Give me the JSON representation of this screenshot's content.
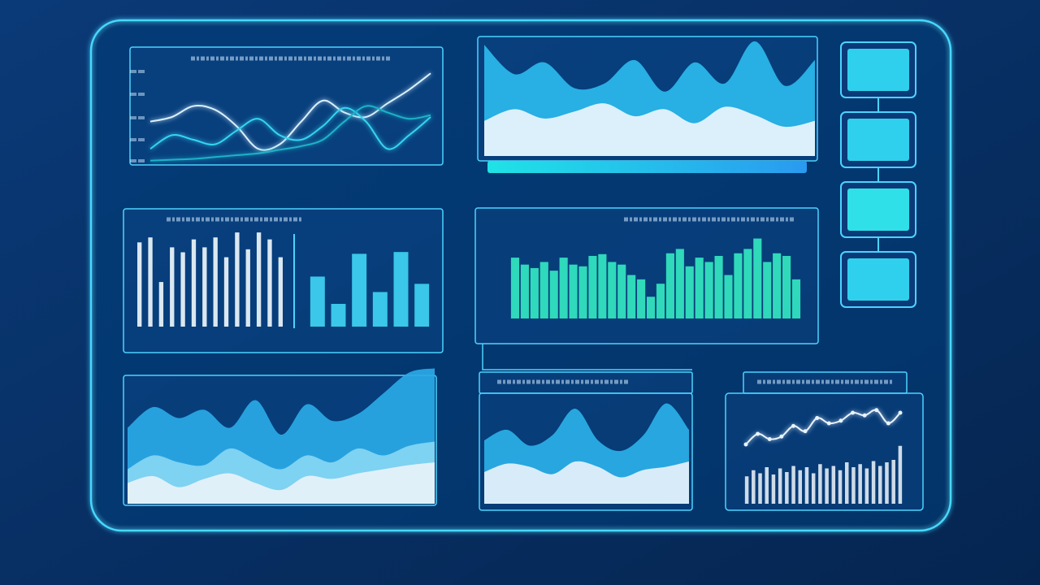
{
  "chart_data": [
    {
      "type": "line",
      "ylim": [
        0,
        100
      ],
      "series": [
        {
          "color": "#d8f1ff",
          "values": [
            45,
            50,
            62,
            58,
            40,
            15,
            20,
            45,
            68,
            55,
            50,
            65,
            80,
            98
          ]
        },
        {
          "color": "#35d4f0",
          "values": [
            15,
            30,
            25,
            20,
            35,
            48,
            30,
            25,
            40,
            60,
            45,
            15,
            30,
            50
          ]
        },
        {
          "color": "#1fb3c9",
          "values": [
            2,
            3,
            4,
            6,
            8,
            10,
            14,
            18,
            25,
            45,
            62,
            55,
            48,
            52
          ]
        }
      ]
    },
    {
      "type": "area",
      "ylim": [
        0,
        100
      ],
      "series": [
        {
          "color": "#2bb8ec",
          "values": [
            95,
            70,
            80,
            58,
            62,
            82,
            55,
            80,
            62,
            98,
            60,
            82
          ]
        },
        {
          "color": "#eaf5fc",
          "values": [
            30,
            40,
            32,
            38,
            45,
            34,
            40,
            28,
            42,
            35,
            25,
            30
          ]
        }
      ]
    },
    {
      "type": "bar",
      "ylim": [
        0,
        100
      ],
      "color": "#eef6fb",
      "values": [
        85,
        90,
        45,
        80,
        75,
        88,
        80,
        90,
        70,
        95,
        78,
        95,
        88,
        70
      ]
    },
    {
      "type": "bar",
      "ylim": [
        0,
        100
      ],
      "color": "#3fd3f2",
      "values": [
        55,
        25,
        80,
        38,
        82,
        47
      ]
    },
    {
      "type": "bar",
      "ylim": [
        0,
        100
      ],
      "color": "#33e6c0",
      "values": [
        70,
        62,
        58,
        65,
        55,
        70,
        62,
        60,
        72,
        74,
        65,
        62,
        50,
        45,
        25,
        40,
        75,
        80,
        60,
        70,
        65,
        72,
        50,
        75,
        80,
        92,
        65,
        75,
        72,
        45
      ]
    },
    {
      "type": "area",
      "ylim": [
        0,
        100
      ],
      "series": [
        {
          "color": "#2aa9e6",
          "values": [
            55,
            70,
            62,
            68,
            55,
            75,
            50,
            72,
            60,
            65,
            80,
            95,
            98
          ]
        },
        {
          "color": "#86d6f3",
          "values": [
            25,
            35,
            30,
            28,
            40,
            32,
            25,
            35,
            30,
            40,
            35,
            42,
            45
          ]
        },
        {
          "color": "#e8f2fa",
          "values": [
            15,
            20,
            12,
            18,
            22,
            15,
            10,
            20,
            18,
            22,
            25,
            28,
            30
          ]
        }
      ]
    },
    {
      "type": "area",
      "ylim": [
        0,
        100
      ],
      "series": [
        {
          "color": "#2bb0e8",
          "values": [
            60,
            70,
            55,
            65,
            90,
            60,
            50,
            65,
            95,
            70
          ]
        },
        {
          "color": "#e6f2fa",
          "values": [
            30,
            38,
            35,
            28,
            40,
            35,
            25,
            32,
            35,
            40
          ]
        }
      ]
    },
    {
      "type": "line",
      "ylim": [
        0,
        100
      ],
      "markers": true,
      "series": [
        {
          "color": "#e8f4ff",
          "values": [
            20,
            40,
            30,
            35,
            55,
            45,
            70,
            60,
            65,
            80,
            75,
            85,
            60,
            80
          ]
        }
      ]
    },
    {
      "type": "bar",
      "ylim": [
        0,
        100
      ],
      "color": "#dfe9f2",
      "values": [
        45,
        55,
        50,
        60,
        48,
        58,
        52,
        62,
        55,
        60,
        50,
        65,
        58,
        62,
        55,
        68,
        60,
        65,
        58,
        70,
        62,
        68,
        72,
        95
      ]
    }
  ]
}
